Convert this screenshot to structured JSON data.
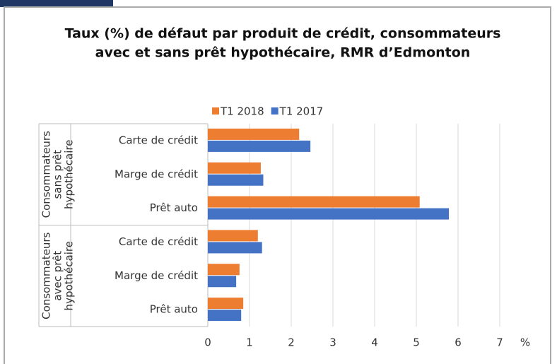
{
  "chart_data": {
    "type": "bar",
    "orientation": "horizontal",
    "title": [
      "Taux (%) de défaut par produit de crédit, consommateurs",
      "avec et sans prêt hypothécaire, RMR d’Edmonton"
    ],
    "groups": [
      {
        "label": [
          "Consommateurs",
          "sans prêt",
          "hypothécaire"
        ],
        "categories": [
          "Carte de crédit",
          "Marge de crédit",
          "Prêt auto"
        ]
      },
      {
        "label": [
          "Consommateurs",
          "avec prêt",
          "hypothécaire"
        ],
        "categories": [
          "Carte de crédit",
          "Marge de crédit",
          "Prêt auto"
        ]
      }
    ],
    "series": [
      {
        "name": "T1 2018",
        "color": "#ed7d31",
        "values": [
          2.19,
          1.27,
          5.08,
          1.2,
          0.76,
          0.85
        ]
      },
      {
        "name": "T1 2017",
        "color": "#4472c4",
        "values": [
          2.46,
          1.33,
          5.78,
          1.3,
          0.68,
          0.8
        ]
      }
    ],
    "xlim": [
      0,
      7
    ],
    "xticks": [
      0,
      1,
      2,
      3,
      4,
      5,
      6,
      7
    ],
    "xlabel": "%",
    "grid": true,
    "legend": "top"
  }
}
